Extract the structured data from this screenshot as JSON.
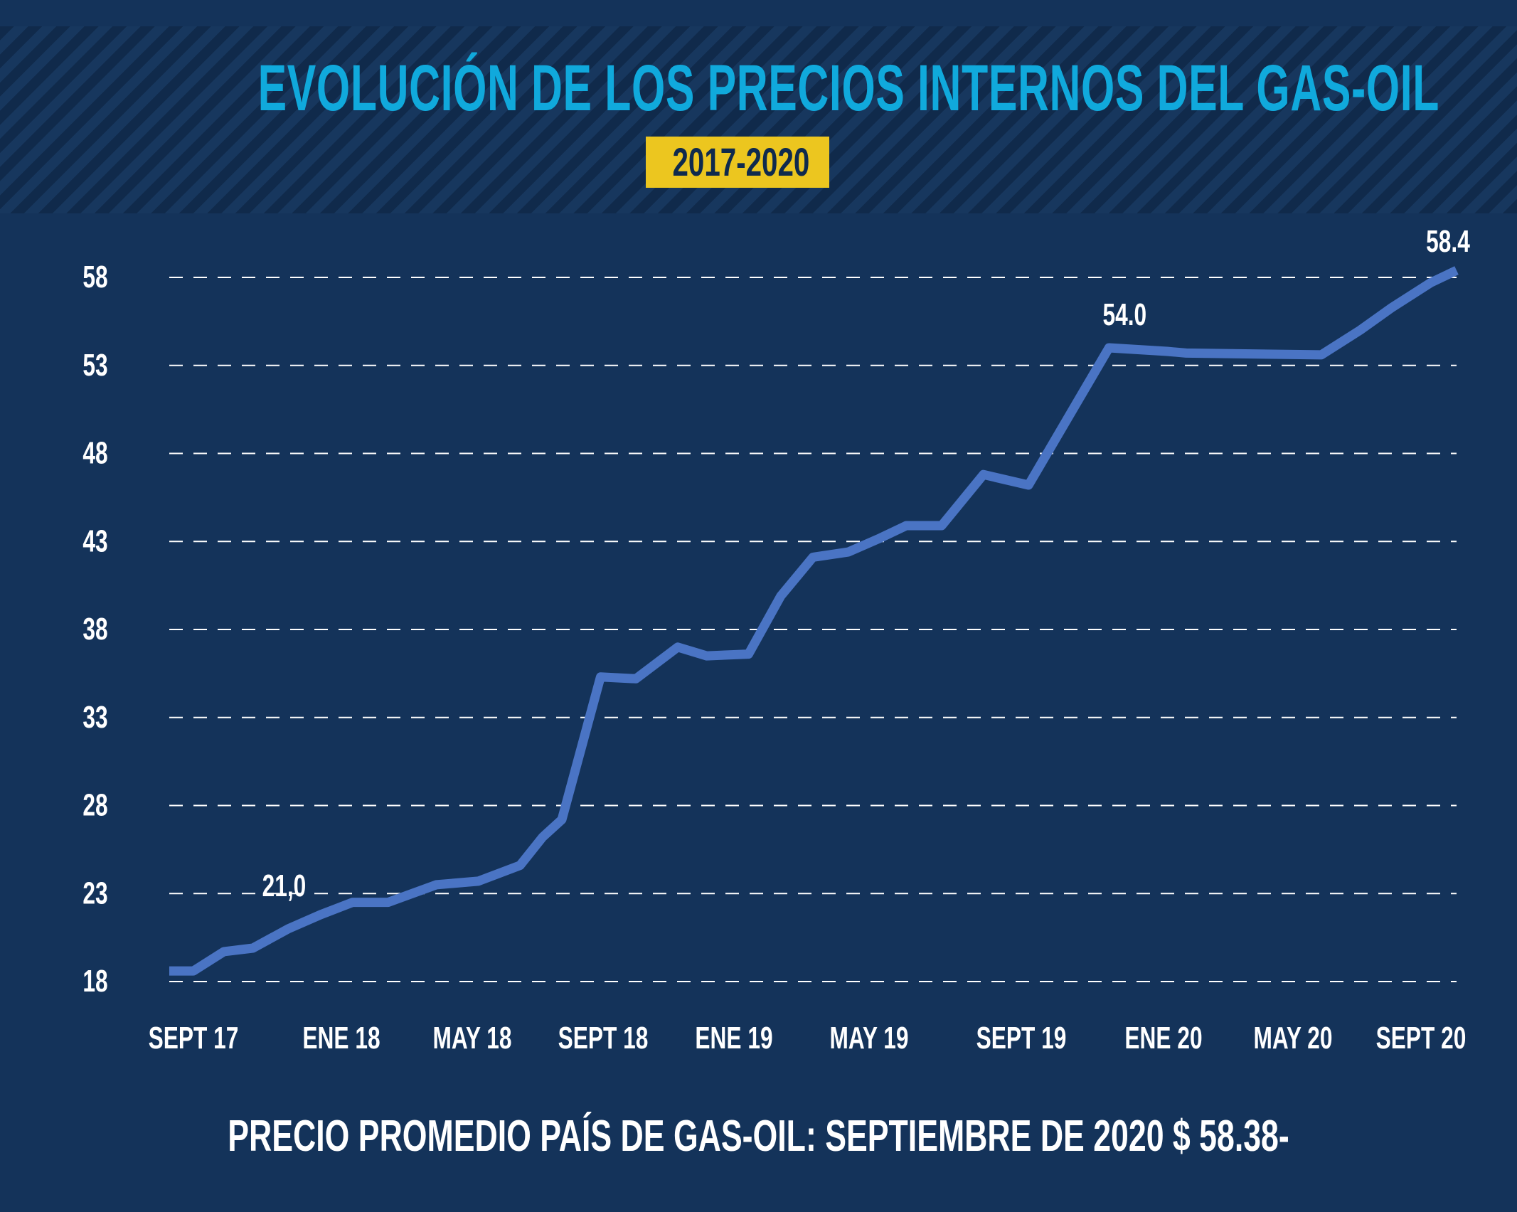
{
  "chart_data": {
    "type": "line",
    "title": "EVOLUCIÓN DE LOS PRECIOS INTERNOS DEL GAS-OIL",
    "subtitle": "2017-2020",
    "footer": "PRECIO PROMEDIO PAÍS DE GAS-OIL: SEPTIEMBRE DE 2020 $ 58.38-",
    "xlabel": "",
    "ylabel": "",
    "grid": true,
    "legend": "none",
    "ylim": [
      18,
      58
    ],
    "yticks": [
      58,
      53,
      48,
      43,
      38,
      33,
      28,
      23,
      18
    ],
    "x_tick_labels": [
      "SEPT 17",
      "ENE 18",
      "MAY 18",
      "SEPT 18",
      "ENE 19",
      "MAY 19",
      "SEPT 19",
      "ENE 20",
      "MAY 20",
      "SEPT 20"
    ],
    "series": [
      {
        "values": [
          {
            "x": 0,
            "y": 18.6
          },
          {
            "x": 0.75,
            "y": 18.6
          },
          {
            "x": 1.7,
            "y": 19.7
          },
          {
            "x": 2.6,
            "y": 19.9
          },
          {
            "x": 3.7,
            "y": 21.0
          },
          {
            "x": 4.7,
            "y": 21.8
          },
          {
            "x": 5.7,
            "y": 22.5
          },
          {
            "x": 6.8,
            "y": 22.5
          },
          {
            "x": 8.3,
            "y": 23.5
          },
          {
            "x": 9.6,
            "y": 23.7
          },
          {
            "x": 10.9,
            "y": 24.6
          },
          {
            "x": 11.6,
            "y": 26.2
          },
          {
            "x": 12.2,
            "y": 27.2
          },
          {
            "x": 13.4,
            "y": 35.3
          },
          {
            "x": 14.5,
            "y": 35.2
          },
          {
            "x": 15.8,
            "y": 37.0
          },
          {
            "x": 16.7,
            "y": 36.5
          },
          {
            "x": 18.0,
            "y": 36.6
          },
          {
            "x": 19.0,
            "y": 39.9
          },
          {
            "x": 20.0,
            "y": 42.1
          },
          {
            "x": 21.1,
            "y": 42.4
          },
          {
            "x": 22.1,
            "y": 43.2
          },
          {
            "x": 22.9,
            "y": 43.9
          },
          {
            "x": 24.0,
            "y": 43.9
          },
          {
            "x": 25.3,
            "y": 46.8
          },
          {
            "x": 26.7,
            "y": 46.2
          },
          {
            "x": 29.2,
            "y": 54.0
          },
          {
            "x": 31.0,
            "y": 53.8
          },
          {
            "x": 31.6,
            "y": 53.7
          },
          {
            "x": 35.8,
            "y": 53.6
          },
          {
            "x": 37.0,
            "y": 55.0
          },
          {
            "x": 38.0,
            "y": 56.3
          },
          {
            "x": 39.2,
            "y": 57.7
          },
          {
            "x": 40.0,
            "y": 58.4
          }
        ]
      }
    ],
    "annotations": [
      {
        "text": "21,0",
        "x": 3.7,
        "y": 21.0
      },
      {
        "text": "54.0",
        "x": 29.2,
        "y": 54.0
      },
      {
        "text": "58.4",
        "x": 40.0,
        "y": 58.4
      }
    ],
    "colors": {
      "background": "#14335a",
      "line": "#4a74c4",
      "title": "#10a9dc",
      "subtitle_bg": "#ecc61f",
      "text": "#ffffff",
      "grid": "#ffffff"
    }
  }
}
